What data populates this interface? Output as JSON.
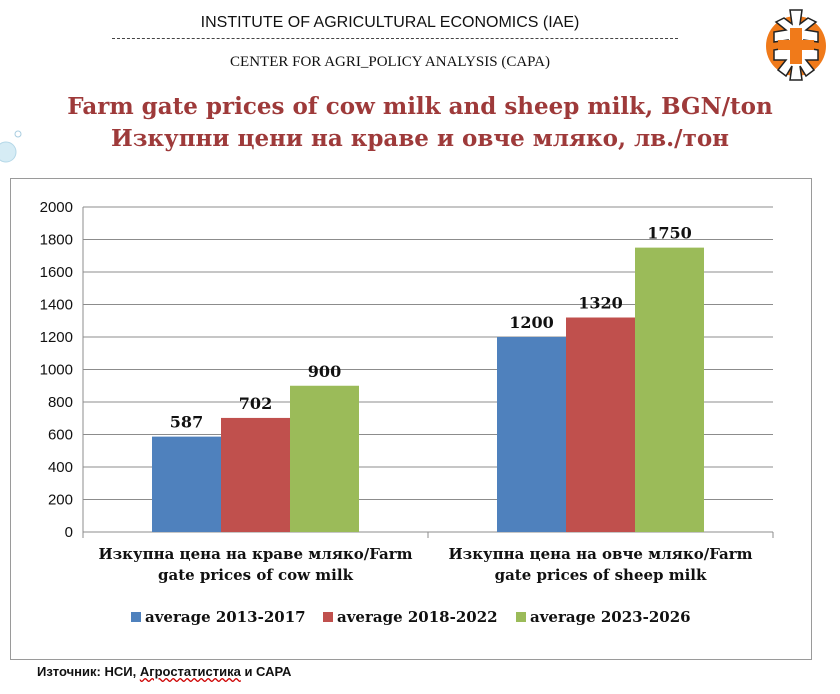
{
  "header": {
    "line1": "INSTITUTE OF AGRICULTURAL ECONOMICS (IAE)",
    "line2": "CENTER FOR AGRI_POLICY ANALYSIS (CAPA)"
  },
  "title": {
    "line1": "Farm gate prices of cow milk and sheep milk, BGN/ton",
    "line2": "Изкупни цени на краве и овче мляко, лв./тон"
  },
  "source": {
    "label": "Източник: НСИ, ",
    "underlined": "Агростатистика",
    "rest": " и САРА"
  },
  "colors": {
    "title": "#9e3a3a",
    "logo_orange": "#f07a1a"
  },
  "chart_data": {
    "type": "bar",
    "categories": [
      [
        "Изкупна цена на краве мляко/Farm",
        "gate prices of cow milk"
      ],
      [
        "Изкупна цена на овче мляко/Farm",
        "gate prices of sheep milk"
      ]
    ],
    "series": [
      {
        "name": "average 2013-2017",
        "color": "#4f81bd",
        "values": [
          587,
          1200
        ]
      },
      {
        "name": "average 2018-2022",
        "color": "#c0504d",
        "values": [
          702,
          1320
        ]
      },
      {
        "name": "average 2023-2026",
        "color": "#9bbb59",
        "values": [
          900,
          1750
        ]
      }
    ],
    "ylim": [
      0,
      2000
    ],
    "yticks": [
      0,
      200,
      400,
      600,
      800,
      1000,
      1200,
      1400,
      1600,
      1800,
      2000
    ],
    "grid": true,
    "legend": "bottom",
    "data_labels": true
  }
}
